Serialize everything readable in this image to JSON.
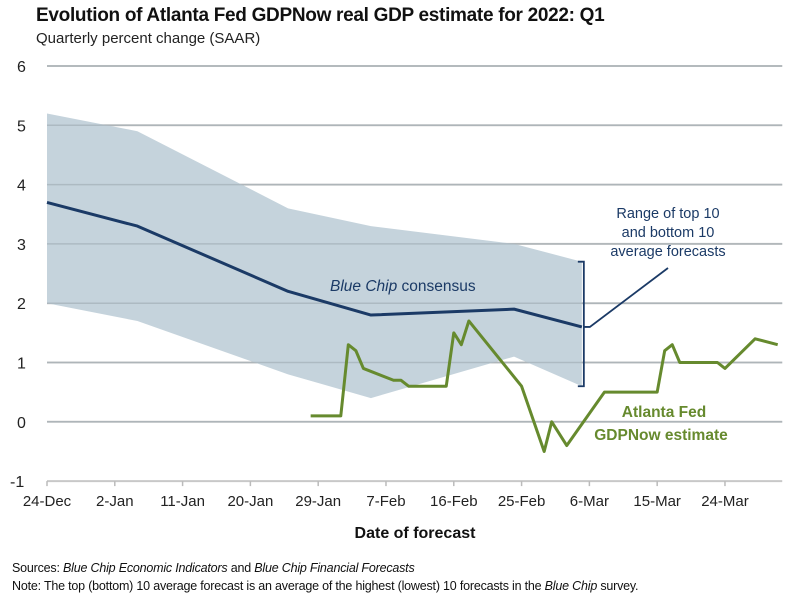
{
  "chart_data": {
    "type": "line",
    "title": "Evolution of Atlanta Fed GDPNow real GDP estimate for 2022: Q1",
    "subtitle": "Quarterly percent change (SAAR)",
    "xlabel": "Date of forecast",
    "ylabel": "",
    "ylim": [
      -1,
      6
    ],
    "xlim_days_from_24_dec": [
      0,
      98
    ],
    "y_ticks": [
      6,
      5,
      4,
      3,
      2,
      1,
      0,
      -1
    ],
    "x_ticks": [
      {
        "day": 0,
        "label": "24-Dec"
      },
      {
        "day": 9,
        "label": "2-Jan"
      },
      {
        "day": 18,
        "label": "11-Jan"
      },
      {
        "day": 27,
        "label": "20-Jan"
      },
      {
        "day": 36,
        "label": "29-Jan"
      },
      {
        "day": 45,
        "label": "7-Feb"
      },
      {
        "day": 54,
        "label": "16-Feb"
      },
      {
        "day": 63,
        "label": "25-Feb"
      },
      {
        "day": 72,
        "label": "6-Mar"
      },
      {
        "day": 81,
        "label": "15-Mar"
      },
      {
        "day": 90,
        "label": "24-Mar"
      }
    ],
    "grid": true,
    "series": [
      {
        "name": "Range of top 10 and bottom 10 average forecasts",
        "type": "band",
        "color": "#c5d3dc",
        "x": [
          0,
          12,
          32,
          43,
          62,
          71
        ],
        "upper": [
          5.2,
          4.9,
          3.6,
          3.3,
          3.0,
          2.7
        ],
        "lower": [
          2.0,
          1.7,
          0.8,
          0.4,
          1.1,
          0.6
        ]
      },
      {
        "name": "Blue Chip consensus",
        "type": "line",
        "color": "#1b3a66",
        "x": [
          0,
          12,
          32,
          43,
          62,
          71
        ],
        "values": [
          3.7,
          3.3,
          2.2,
          1.8,
          1.9,
          1.6
        ]
      },
      {
        "name": "Atlanta Fed GDPNow estimate",
        "type": "line",
        "color": "#668a2e",
        "x": [
          35,
          39,
          40,
          41,
          42,
          46,
          47,
          48,
          53,
          54,
          55,
          56,
          63,
          66,
          67,
          69,
          74,
          81,
          82,
          83,
          84,
          89,
          90,
          94,
          97
        ],
        "values": [
          0.1,
          0.1,
          1.3,
          1.2,
          0.9,
          0.7,
          0.7,
          0.6,
          0.6,
          1.5,
          1.3,
          1.7,
          0.6,
          -0.5,
          0.0,
          -0.4,
          0.5,
          0.5,
          1.2,
          1.3,
          1.0,
          1.0,
          0.9,
          1.4,
          1.3
        ]
      }
    ],
    "annotations": {
      "consensus_label": {
        "italic": "Blue Chip",
        "rest": " consensus"
      },
      "range_label": [
        "Range of top 10",
        "and bottom 10",
        "average forecasts"
      ],
      "gdpnow_label": [
        "Atlanta Fed",
        "GDPNow estimate"
      ]
    },
    "legend": "none (direct labels)"
  },
  "footer": {
    "sources_prefix": "Sources:",
    "sources_italic1": "Blue Chip Economic Indicators",
    "sources_mid": " and ",
    "sources_italic2": "Blue Chip Financial Forecasts",
    "note_prefix": "Note:",
    "note_text1": " The top (bottom) 10 average forecast is an average of the highest (lowest) 10 forecasts in the ",
    "note_italic": "Blue Chip",
    "note_text2": " survey."
  }
}
